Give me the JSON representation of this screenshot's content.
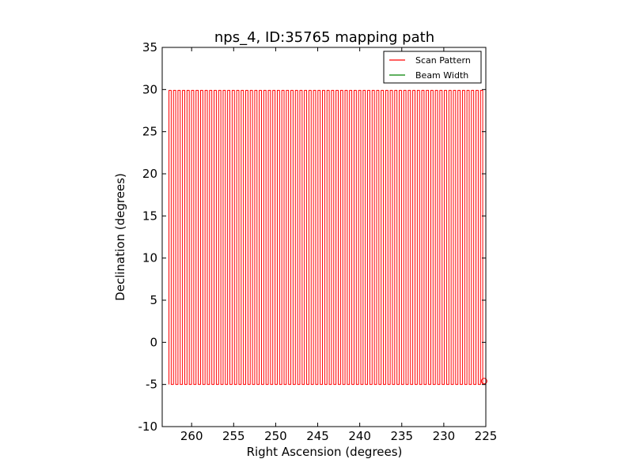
{
  "chart_data": {
    "type": "line",
    "title": "nps_4, ID:35765 mapping path",
    "xlabel": "Right Ascension (degrees)",
    "ylabel": "Declination (degrees)",
    "xlim": [
      263.5,
      225
    ],
    "ylim": [
      -10,
      35
    ],
    "x_ticks": [
      260,
      255,
      250,
      245,
      240,
      235,
      230,
      225
    ],
    "y_ticks": [
      -10,
      -5,
      0,
      5,
      10,
      15,
      20,
      25,
      30,
      35
    ],
    "x_inverted": true,
    "grid": false,
    "legend_position": "top-right",
    "series": [
      {
        "name": "Scan Pattern",
        "color": "#ff0000",
        "pattern": "raster",
        "ra_start": 262.7,
        "ra_end": 225.1,
        "dec_min": -5,
        "dec_max": 29.9,
        "legs": 140
      },
      {
        "name": "Beam Width",
        "color": "#008000"
      }
    ],
    "annotations": [
      {
        "type": "circle-marker",
        "x": 225.2,
        "y": -4.6,
        "color": "#ff0000"
      }
    ]
  }
}
